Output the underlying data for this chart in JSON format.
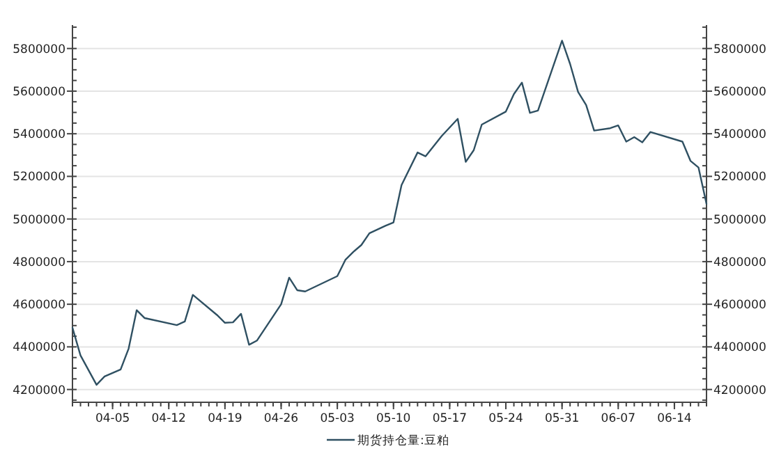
{
  "chart_data": {
    "type": "line",
    "x": [
      "--03-31",
      "--04-01",
      "--04-03",
      "--04-04",
      "--04-06",
      "--04-07",
      "--04-08",
      "--04-09",
      "--04-13",
      "--04-14",
      "--04-15",
      "--04-18",
      "--04-19",
      "--04-20",
      "--04-21",
      "--04-22",
      "--04-23",
      "--04-26",
      "--04-27",
      "--04-28",
      "--04-29",
      "--05-03",
      "--05-04",
      "--05-05",
      "--05-06",
      "--05-07",
      "--05-09",
      "--05-10",
      "--05-11",
      "--05-13",
      "--05-14",
      "--05-16",
      "--05-18",
      "--05-19",
      "--05-20",
      "--05-21",
      "--05-24",
      "--05-25",
      "--05-26",
      "--05-27",
      "--05-28",
      "--05-31",
      "--06-01",
      "--06-02",
      "--06-03",
      "--06-04",
      "--06-06",
      "--06-07",
      "--06-08",
      "--06-09",
      "--06-10",
      "--06-11",
      "--06-15",
      "--06-16",
      "--06-17",
      "--06-18"
    ],
    "series": [
      {
        "name": "期货持仓量:豆粕",
        "color": "#2f5062",
        "values": [
          4490000,
          4360000,
          4222000,
          4261000,
          4294000,
          4392000,
          4572000,
          4535000,
          4502000,
          4519000,
          4644000,
          4550000,
          4513000,
          4515000,
          4555000,
          4410000,
          4430000,
          4600000,
          4725000,
          4666000,
          4660000,
          4732000,
          4808000,
          4846000,
          4878000,
          4933000,
          4968000,
          4984000,
          5159000,
          5312000,
          5294000,
          5389000,
          5470000,
          5268000,
          5323000,
          5443000,
          5504000,
          5586000,
          5640000,
          5498000,
          5509000,
          5837000,
          5728000,
          5596000,
          5535000,
          5415000,
          5426000,
          5439000,
          5363000,
          5384000,
          5360000,
          5408000,
          5363000,
          5273000,
          5242000,
          5071000
        ]
      }
    ],
    "xlim": [
      "--03-31",
      "--06-18"
    ],
    "xticks": [
      {
        "value": "--04-05",
        "label": "04-05"
      },
      {
        "value": "--04-12",
        "label": "04-12"
      },
      {
        "value": "--04-19",
        "label": "04-19"
      },
      {
        "value": "--04-26",
        "label": "04-26"
      },
      {
        "value": "--05-03",
        "label": "05-03"
      },
      {
        "value": "--05-10",
        "label": "05-10"
      },
      {
        "value": "--05-17",
        "label": "05-17"
      },
      {
        "value": "--05-24",
        "label": "05-24"
      },
      {
        "value": "--05-31",
        "label": "05-31"
      },
      {
        "value": "--06-07",
        "label": "06-07"
      },
      {
        "value": "--06-14",
        "label": "06-14"
      }
    ],
    "ylim": [
      4140000,
      5910000
    ],
    "yticks": [
      4200000,
      4400000,
      4600000,
      4800000,
      5000000,
      5200000,
      5400000,
      5600000,
      5800000
    ],
    "y2lim": [
      4140000,
      5910000
    ],
    "y2ticks": [
      4200000,
      4400000,
      4600000,
      4800000,
      5000000,
      5200000,
      5400000,
      5600000,
      5800000
    ],
    "grid": "y",
    "legend": "bottom"
  }
}
